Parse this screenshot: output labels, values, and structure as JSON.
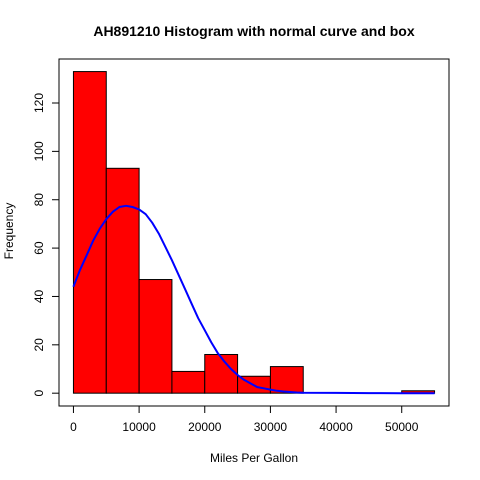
{
  "chart_data": {
    "type": "bar",
    "title": "AH891210 Histogram with normal curve and box",
    "xlabel": "Miles Per Gallon",
    "ylabel": "Frequency",
    "xlim": [
      -2200,
      57200
    ],
    "ylim": [
      -5.3,
      138.2
    ],
    "x_ticks": [
      0,
      10000,
      20000,
      30000,
      40000,
      50000
    ],
    "x_tick_labels": [
      "0",
      "10000",
      "20000",
      "30000",
      "40000",
      "50000"
    ],
    "y_ticks": [
      0,
      20,
      40,
      60,
      80,
      100,
      120
    ],
    "y_tick_labels": [
      "0",
      "20",
      "40",
      "60",
      "80",
      "100",
      "120"
    ],
    "bins": [
      {
        "x0": 0,
        "x1": 5000,
        "count": 133
      },
      {
        "x0": 5000,
        "x1": 10000,
        "count": 93
      },
      {
        "x0": 10000,
        "x1": 15000,
        "count": 47
      },
      {
        "x0": 15000,
        "x1": 20000,
        "count": 9
      },
      {
        "x0": 20000,
        "x1": 25000,
        "count": 16
      },
      {
        "x0": 25000,
        "x1": 30000,
        "count": 7
      },
      {
        "x0": 30000,
        "x1": 35000,
        "count": 11
      },
      {
        "x0": 35000,
        "x1": 40000,
        "count": 0
      },
      {
        "x0": 40000,
        "x1": 45000,
        "count": 0
      },
      {
        "x0": 45000,
        "x1": 50000,
        "count": 0
      },
      {
        "x0": 50000,
        "x1": 55000,
        "count": 1
      }
    ],
    "normal_curve": {
      "x": [
        0,
        1000,
        2000,
        3000,
        4000,
        5000,
        6000,
        7000,
        8000,
        9000,
        10000,
        11000,
        12000,
        13000,
        14000,
        15000,
        16000,
        17000,
        18000,
        19000,
        20000,
        21000,
        22000,
        23000,
        24000,
        25000,
        26000,
        27000,
        28000,
        29000,
        30000,
        31000,
        32000,
        33000,
        34000,
        35000,
        40000,
        45000,
        50000,
        55000
      ],
      "y": [
        44,
        51,
        57,
        63,
        68,
        72,
        75,
        77,
        77.5,
        77,
        76,
        74,
        70.5,
        66,
        60.5,
        55,
        49,
        43,
        37,
        31,
        26,
        21,
        16.5,
        13,
        10,
        7.5,
        5.5,
        4,
        2.5,
        2,
        1.5,
        1,
        0.7,
        0.5,
        0.3,
        0.2,
        0.1,
        0.05,
        0,
        0
      ]
    },
    "colors": {
      "bar_fill": "#ff0000",
      "bar_stroke": "#000000",
      "curve": "#0000ff"
    },
    "grid": false,
    "legend": "none"
  }
}
